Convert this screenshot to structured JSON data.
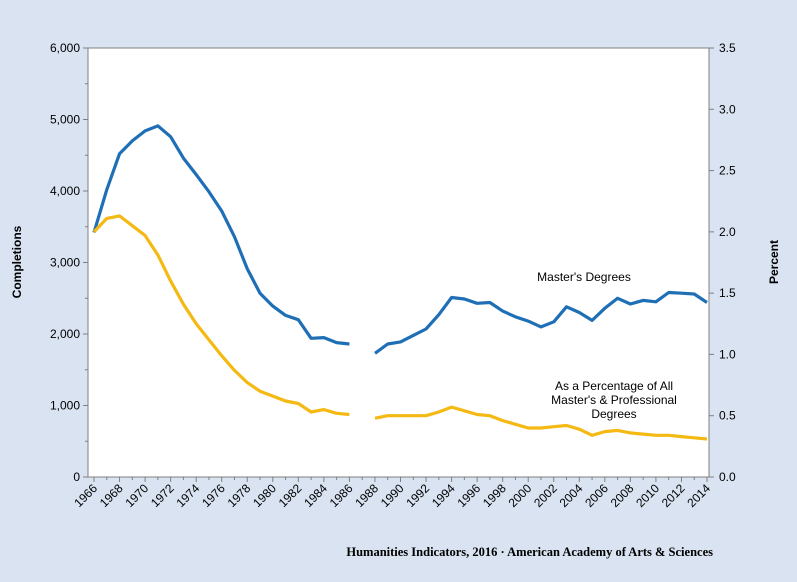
{
  "chart_data": {
    "type": "line",
    "x": [
      1966,
      1967,
      1968,
      1969,
      1970,
      1971,
      1972,
      1973,
      1974,
      1975,
      1976,
      1977,
      1978,
      1979,
      1980,
      1981,
      1982,
      1983,
      1984,
      1985,
      1986,
      1987,
      1988,
      1989,
      1990,
      1991,
      1992,
      1993,
      1994,
      1995,
      1996,
      1997,
      1998,
      1999,
      2000,
      2001,
      2002,
      2003,
      2004,
      2005,
      2006,
      2007,
      2008,
      2009,
      2010,
      2011,
      2012,
      2013,
      2014
    ],
    "x_tick_labels": [
      "1966",
      "1968",
      "1970",
      "1972",
      "1974",
      "1976",
      "1978",
      "1980",
      "1982",
      "1984",
      "1986",
      "1988",
      "1990",
      "1992",
      "1994",
      "1996",
      "1998",
      "2000",
      "2002",
      "2004",
      "2006",
      "2008",
      "2010",
      "2012",
      "2014"
    ],
    "left_axis": {
      "label": "Completions",
      "ylim": [
        0,
        6000
      ],
      "ticks": [
        0,
        1000,
        2000,
        3000,
        4000,
        5000,
        6000
      ],
      "tick_labels": [
        "0",
        "1,000",
        "2,000",
        "3,000",
        "4,000",
        "5,000",
        "6,000"
      ]
    },
    "right_axis": {
      "label": "Percent",
      "ylim": [
        0,
        3.5
      ],
      "ticks": [
        0,
        0.5,
        1,
        1.5,
        2,
        2.5,
        3,
        3.5
      ],
      "tick_labels": [
        "0.0",
        "0.5",
        "1.0",
        "1.5",
        "2.0",
        "2.5",
        "3.0",
        "3.5"
      ]
    },
    "series": [
      {
        "name": "Master's Degrees",
        "axis": "left",
        "color": "#1f6fb6",
        "values": [
          3420,
          4020,
          4520,
          4700,
          4840,
          4910,
          4760,
          4460,
          4230,
          3990,
          3720,
          3360,
          2910,
          2570,
          2390,
          2260,
          2200,
          1940,
          1950,
          1880,
          1860,
          null,
          1730,
          1860,
          1890,
          1980,
          2070,
          2270,
          2510,
          2490,
          2430,
          2440,
          2320,
          2240,
          2180,
          2100,
          2170,
          2380,
          2300,
          2190,
          2360,
          2500,
          2420,
          2470,
          2450,
          2580,
          2570,
          2560,
          2440
        ]
      },
      {
        "name": "As a Percentage of All Master's & Professional Degrees",
        "axis": "right",
        "color": "#f4b912",
        "values": [
          2.0,
          2.11,
          2.13,
          2.05,
          1.97,
          1.81,
          1.6,
          1.41,
          1.25,
          1.12,
          0.99,
          0.87,
          0.77,
          0.7,
          0.66,
          0.62,
          0.6,
          0.53,
          0.55,
          0.52,
          0.51,
          null,
          0.48,
          0.5,
          0.5,
          0.5,
          0.5,
          0.53,
          0.57,
          0.54,
          0.51,
          0.5,
          0.46,
          0.43,
          0.4,
          0.4,
          0.41,
          0.42,
          0.39,
          0.34,
          0.37,
          0.38,
          0.36,
          0.35,
          0.34,
          0.34,
          0.33,
          0.32,
          0.31
        ]
      }
    ],
    "annotations": [
      {
        "series": 0,
        "lines": [
          "Master's Degrees"
        ]
      },
      {
        "series": 1,
        "lines": [
          "As a Percentage of All",
          "Master's & Professional",
          "Degrees"
        ]
      }
    ],
    "grid": false,
    "legend": "none"
  },
  "footer": {
    "credit": "Humanities Indicators, 2016 · American Academy of Arts & Sciences"
  },
  "colors": {
    "background": "#d9e3f1",
    "plot_background": "#ffffff",
    "masters": "#1f6fb6",
    "percentage": "#f4b912"
  }
}
